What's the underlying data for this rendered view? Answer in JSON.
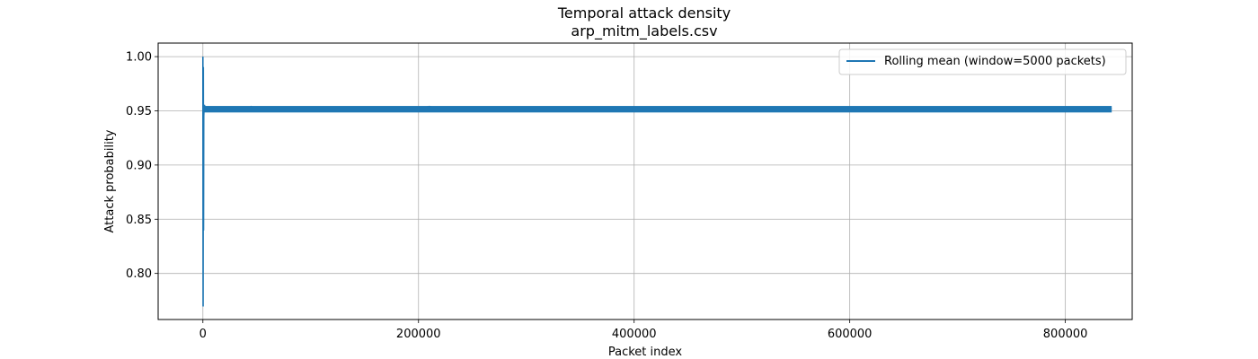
{
  "chart_data": {
    "type": "line",
    "title": "Temporal attack density",
    "subtitle": "arp_mitm_labels.csv",
    "xlabel": "Packet index",
    "ylabel": "Attack probability",
    "xlim": [
      -41500,
      862000
    ],
    "ylim": [
      0.7575,
      1.0125
    ],
    "xticks": [
      0,
      200000,
      400000,
      600000,
      800000
    ],
    "xtick_labels": [
      "0",
      "200000",
      "400000",
      "600000",
      "800000"
    ],
    "yticks": [
      0.8,
      0.85,
      0.9,
      0.95,
      1.0
    ],
    "ytick_labels": [
      "0.80",
      "0.85",
      "0.90",
      "0.95",
      "1.00"
    ],
    "grid": true,
    "legend_position": "top-right",
    "series": [
      {
        "name": "Rolling mean (window=5000 packets)",
        "color": "#1f77b4",
        "x": [
          0,
          200,
          400,
          600,
          800,
          1000,
          1500,
          2000,
          3000,
          5000,
          8000,
          12000,
          20000,
          30000,
          40000,
          45000,
          50000,
          60000,
          80000,
          100000,
          120000,
          140000,
          160000,
          180000,
          200000,
          210000,
          220000,
          240000,
          260000,
          280000,
          300000,
          320000,
          330000,
          340000,
          360000,
          380000,
          400000,
          420000,
          440000,
          450000,
          460000,
          480000,
          500000,
          520000,
          540000,
          560000,
          580000,
          600000,
          620000,
          640000,
          660000,
          680000,
          700000,
          720000,
          740000,
          750000,
          760000,
          780000,
          800000,
          820000,
          843000
        ],
        "y": [
          1.0,
          0.77,
          0.99,
          0.84,
          0.945,
          0.95,
          0.955,
          0.953,
          0.95,
          0.951,
          0.952,
          0.951,
          0.952,
          0.951,
          0.952,
          0.954,
          0.951,
          0.952,
          0.952,
          0.951,
          0.952,
          0.951,
          0.95,
          0.951,
          0.952,
          0.954,
          0.952,
          0.952,
          0.951,
          0.952,
          0.95,
          0.952,
          0.953,
          0.952,
          0.952,
          0.951,
          0.953,
          0.952,
          0.951,
          0.953,
          0.952,
          0.951,
          0.952,
          0.951,
          0.952,
          0.951,
          0.952,
          0.951,
          0.952,
          0.951,
          0.952,
          0.951,
          0.952,
          0.951,
          0.951,
          0.953,
          0.951,
          0.951,
          0.952,
          0.951,
          0.952
        ]
      }
    ]
  }
}
